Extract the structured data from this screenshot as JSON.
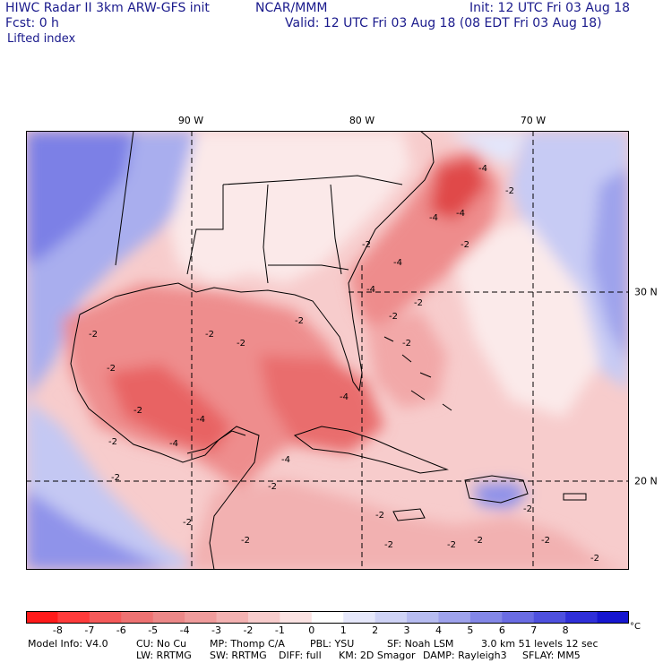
{
  "header": {
    "model_title": "HIWC Radar II 3km ARW-GFS init",
    "org": "NCAR/MMM",
    "init": "Init: 12 UTC Fri 03 Aug 18",
    "fcst": "Fcst:     0 h",
    "valid": "Valid: 12 UTC Fri 03 Aug 18 (08 EDT Fri 03 Aug 18)",
    "field": "Lifted index"
  },
  "map": {
    "lon_labels": [
      "90 W",
      "80 W",
      "70 W"
    ],
    "lat_labels": [
      "30 N",
      "20 N"
    ],
    "contour_label": "-2",
    "contour_label_alt": "-4",
    "colors": {
      "neg_light": "#f7c9c9",
      "neg_mid": "#ef8f8f",
      "neg_strong": "#e8585a",
      "neutral": "#ffffff",
      "pos_light": "#d2d6f5",
      "pos_mid": "#a7acee",
      "pos_strong": "#6d6fe6",
      "pos_deep": "#3232e0"
    }
  },
  "colorbar": {
    "ticks": [
      "-8",
      "-7",
      "-6",
      "-5",
      "-4",
      "-3",
      "-2",
      "-1",
      "0",
      "1",
      "2",
      "3",
      "4",
      "5",
      "6",
      "7",
      "8"
    ],
    "unit": "°C",
    "colors": [
      "#ff1a1a",
      "#ff3b3b",
      "#f55a5a",
      "#ee7272",
      "#ec8888",
      "#f09c9c",
      "#f4b2b2",
      "#f8cccc",
      "#fbe3e3",
      "#ffffff",
      "#e6e8fb",
      "#cfd3f6",
      "#b7bcf1",
      "#9ea2ec",
      "#8387e7",
      "#6a6ce3",
      "#4e50de",
      "#2f2fd8",
      "#1616cf"
    ]
  },
  "footer": {
    "line1": [
      "Model Info: V4.0",
      "CU: No Cu",
      "MP: Thomp C/A",
      "PBL: YSU",
      "SF: Noah LSM",
      "3.0 km  51 levels  12 sec"
    ],
    "line2": [
      "LW: RRTMG",
      "SW: RRTMG",
      "DIFF: full",
      "KM: 2D Smagor",
      "DAMP: Rayleigh3",
      "SFLAY: MM5"
    ]
  }
}
